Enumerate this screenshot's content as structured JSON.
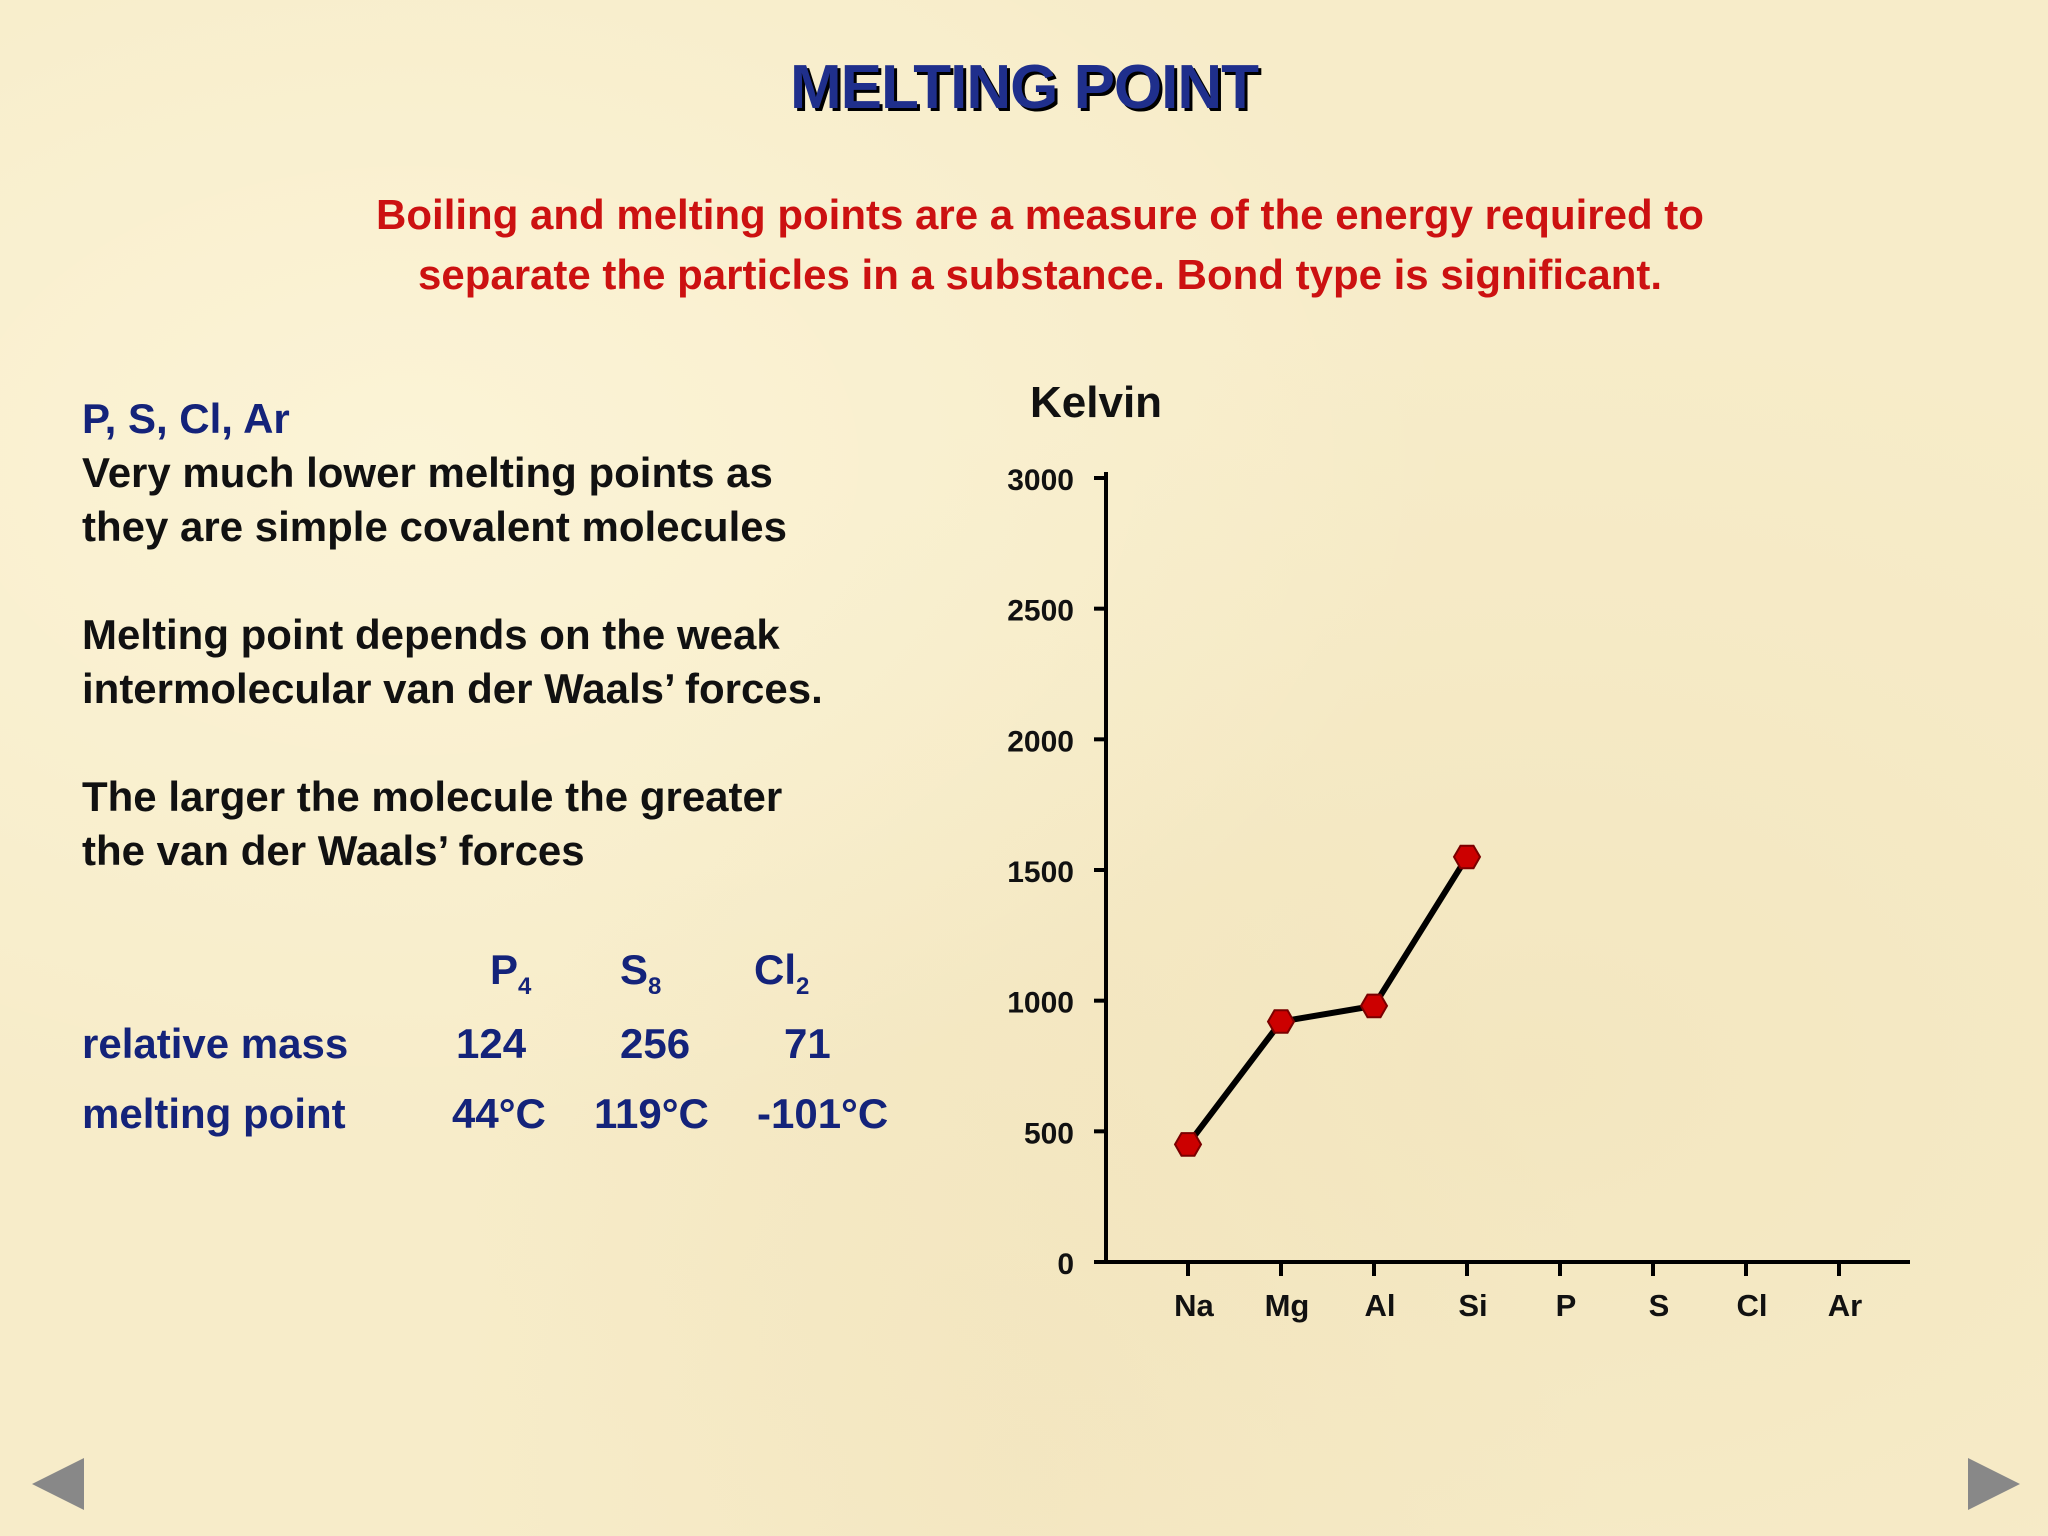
{
  "title": "MELTING POINT",
  "subtitle": {
    "line1": "Boiling and melting points are a measure of the energy required to",
    "line2": "separate the particles in a substance. Bond type is significant."
  },
  "left": {
    "elements": "P, S, Cl, Ar",
    "para1_line1": "Very much lower melting points as",
    "para1_line2": "they are simple covalent molecules",
    "para2_line1": "Melting point depends on the weak",
    "para2_line2": "intermolecular van der Waals’ forces.",
    "para3_line1": "The larger the molecule the greater",
    "para3_line2": "the van der Waals’ forces"
  },
  "table": {
    "molecules": [
      {
        "symbol": "P",
        "subscript": "4",
        "relative_mass": "124",
        "melting_point": "44°C"
      },
      {
        "symbol": "S",
        "subscript": "8",
        "relative_mass": "256",
        "melting_point": "119°C"
      },
      {
        "symbol": "Cl",
        "subscript": "2",
        "relative_mass": "71",
        "melting_point": "-101°C"
      }
    ],
    "row_labels": {
      "relative_mass": "relative mass",
      "melting_point": "melting point"
    }
  },
  "chart_data": {
    "type": "line",
    "ylabel": "Kelvin",
    "categories": [
      "Na",
      "Mg",
      "Al",
      "Si",
      "P",
      "S",
      "Cl",
      "Ar"
    ],
    "y_ticks": [
      "3000",
      "2500",
      "2000",
      "1500",
      "1000",
      "500",
      "0"
    ],
    "ylim": [
      0,
      3000
    ],
    "series": [
      {
        "values": [
          450,
          920,
          980,
          1550,
          null,
          null,
          null,
          null
        ]
      }
    ],
    "grid": false,
    "line_color": "#000000",
    "marker_color": "#cc0000"
  },
  "navigation": {
    "prev_icon": "triangle-left-icon",
    "next_icon": "triangle-right-icon"
  }
}
